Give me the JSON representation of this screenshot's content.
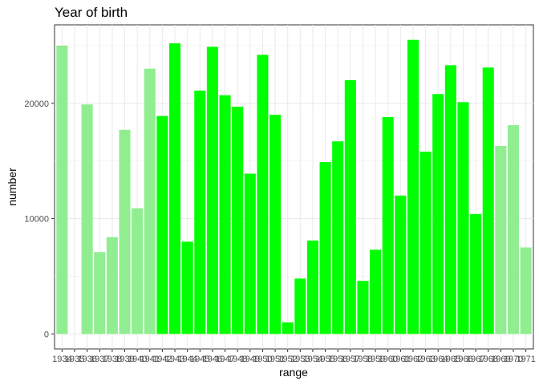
{
  "chart_data": {
    "type": "bar",
    "title": "Year of birth",
    "xlabel": "range",
    "ylabel": "number",
    "categories": [
      "1934",
      "1935",
      "1936",
      "1937",
      "1938",
      "1939",
      "1940",
      "1941",
      "1942",
      "1943",
      "1944",
      "1945",
      "1946",
      "1947",
      "1948",
      "1949",
      "1950",
      "1951",
      "1952",
      "1953",
      "1954",
      "1955",
      "1956",
      "1957",
      "1958",
      "1959",
      "1960",
      "1961",
      "1962",
      "1963",
      "1964",
      "1965",
      "1966",
      "1967",
      "1968",
      "1969",
      "1970",
      "1971"
    ],
    "values": [
      25000,
      0,
      19900,
      7100,
      8400,
      17700,
      10900,
      23000,
      18900,
      25200,
      8000,
      21100,
      24900,
      20700,
      19700,
      13900,
      24200,
      19000,
      1000,
      4800,
      8100,
      14900,
      16700,
      22000,
      4600,
      7300,
      18800,
      12000,
      25500,
      15800,
      20800,
      23300,
      20100,
      10400,
      23100,
      16300,
      18100,
      7500
    ],
    "highlight": [
      false,
      false,
      false,
      false,
      false,
      false,
      false,
      false,
      true,
      true,
      true,
      true,
      true,
      true,
      true,
      true,
      true,
      true,
      true,
      true,
      true,
      true,
      true,
      true,
      true,
      true,
      true,
      true,
      true,
      true,
      true,
      true,
      true,
      true,
      true,
      false,
      false,
      false
    ],
    "colors": {
      "base": "#90ee90",
      "highlight": "#00ff00"
    },
    "ylim": [
      -1300,
      26800
    ],
    "yticks": [
      0,
      10000,
      20000
    ],
    "grid": true
  }
}
